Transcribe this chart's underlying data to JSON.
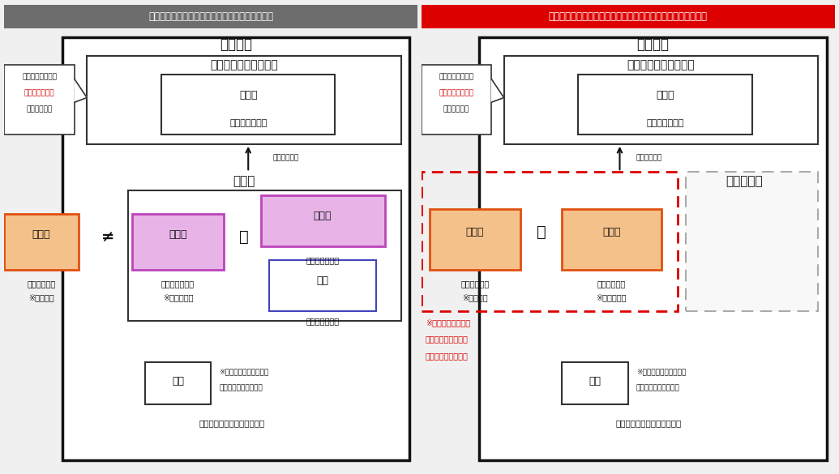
{
  "fig_width": 10.35,
  "fig_height": 5.85,
  "fig_dpi": 100,
  "bg_color": "#f0f0f0",
  "left": {
    "header_text": "一般的な管理組合方式のイメージ（理事会あり）",
    "header_bg": "#6d6d6d",
    "header_fg": "#ffffff",
    "title": "管理組合",
    "soukai_title": "総会（意思決定機関）",
    "kumiain_text": "組合員",
    "kumiain_sub": "（区分所有者）",
    "arrow_label": "総会の決議案",
    "rijikai_title": "理事会",
    "callout_line1": "総会で意思決定。",
    "callout_line2_red": "理事会での方針",
    "callout_line3": "に対して決議",
    "jigyo_text": "事業者",
    "jigyo_sub1": "（管理業者）",
    "jigyo_sub2": "※管理業務",
    "jigyo_fill": "#f5c18a",
    "jigyo_edge": "#e05010",
    "neq_text": "≠",
    "kanri_text": "管理者",
    "kanri_sub1": "（区分所有者）",
    "kanri_sub2": "※管理者業務",
    "kanri_fill": "#e8b4e8",
    "kanri_edge": "#bb44bb",
    "eq_text": "＝",
    "richo_text": "理事長",
    "richo_sub": "（区分所有者）",
    "richo_fill": "#e8b4e8",
    "richo_edge": "#bb44bb",
    "riji_text": "理事",
    "riji_sub": "（区分所有者）",
    "riji_fill": "#ffffff",
    "riji_edge": "#4444bb",
    "kansa_text": "監事",
    "kansa_note1": "※管理組合の業務の執行",
    "kansa_note2": "及び財産の状況を監査",
    "kansa_sub": "（区分所有者や外部専門家）",
    "main_border": "#111111",
    "box_border": "#333333"
  },
  "right": {
    "header_text": "管理業者が管理者になる方式のイメージ（理事会なしの場合）",
    "header_bg": "#dd0000",
    "header_fg": "#ffffff",
    "title": "管理組合",
    "soukai_title": "総会（意思決定機関）",
    "kumiain_text": "組合員",
    "kumiain_sub": "（区分所有者）",
    "arrow_label": "総会の決議案",
    "rijikai_title": "理事会なし",
    "callout_line1": "総会で意思決定。",
    "callout_line2_red": "管理者による方針",
    "callout_line3": "に対して決議",
    "jigyo_text": "事業者",
    "jigyo_sub1": "（管理業者）",
    "jigyo_sub2": "※管理業務",
    "jigyo_fill": "#f5c18a",
    "jigyo_edge": "#e05010",
    "eq_text": "＝",
    "kanri_text": "管理者",
    "kanri_sub1": "（管理業者）",
    "kanri_sub2": "※管理者業務",
    "kanri_fill": "#f5c18a",
    "kanri_edge": "#e05010",
    "note_red1": "※管理組合の代表で",
    "note_red2": "ある管理者と、管理",
    "note_red3": "業務を行う者が同一",
    "kansa_text": "監事",
    "kansa_note1": "※管理組合の業務の執行",
    "kansa_note2": "及び財産の状況を監査",
    "kansa_sub": "（区分所有者や外部専門家）",
    "main_border": "#111111",
    "box_border": "#333333"
  }
}
